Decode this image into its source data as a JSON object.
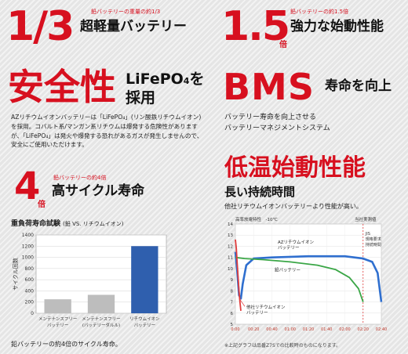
{
  "panel1": {
    "fraction": "1/3",
    "note": "鉛バッテリーの重量の約1/3",
    "title": "超軽量バッテリー"
  },
  "panel2": {
    "number": "1.5",
    "suffix": "倍",
    "note": "鉛バッテリーの約1.5倍",
    "title": "強力な始動性能"
  },
  "panel3": {
    "title": "安全性",
    "title_right_1": "LiFePO",
    "title_right_sub": "4",
    "title_right_2": "を",
    "title_right_3": "採用",
    "body": "AZリチウムイオンバッテリーは「LiFePO₄」(リン酸鉄リチウムイオン)を採用。コバルト系/マンガン系リチウムは爆発する危険性がありますが、「LiFePO₄」は発火や爆発する恐れがあるガスが発生しませんので、安全にご使用いただけます。"
  },
  "panel4": {
    "title": "BMS",
    "title_right": "寿命を向上",
    "body_line1": "バッテリー寿命を向上させる",
    "body_line2": "バッテリーマネジメントシステム"
  },
  "panel5": {
    "number": "4",
    "suffix": "倍",
    "note": "鉛バッテリーの約4倍",
    "title": "高サイクル寿命",
    "chart_heading": "重負荷寿命試験",
    "chart_heading_sub": "(鉛 VS. リチウムイオン)",
    "caption": "鉛バッテリーの約4倍のサイクル寿命。"
  },
  "panel6": {
    "title": "低温始動性能",
    "subtitle": "長い持続時間",
    "body": "他社リチウムイオンバッテリーより性能が高い。",
    "footnote": "※上記グラフは品番Z7Sでの比較時のものになります。"
  },
  "chart_data": [
    {
      "type": "bar",
      "ylabel": "サイクル回数",
      "ylim": [
        0,
        1400
      ],
      "yticks": [
        "0",
        "200",
        "400",
        "600",
        "800",
        "1000",
        "1200",
        "1400"
      ],
      "categories": [
        "メンテナンスフリー バッテリー",
        "メンテナンスフリー (バッテリーダルル)",
        "リチウムイオン バッテリー"
      ],
      "values": [
        250,
        330,
        1200
      ],
      "colors": [
        "#bdbdbd",
        "#bdbdbd",
        "#2f5fae"
      ]
    },
    {
      "type": "line",
      "title": "高率放電特性　-10℃",
      "ylim": [
        5,
        14
      ],
      "yticks": [
        "14",
        "13",
        "12",
        "11",
        "10",
        "9",
        "8",
        "7",
        "6",
        "5"
      ],
      "x": [
        "0:00",
        "00:20",
        "00:40",
        "01:00",
        "01:20",
        "01:40",
        "02:00",
        "02:20",
        "02:40"
      ],
      "annotation_top": "当社実測値",
      "jis_label": "JIS 規格要求 持続時間",
      "series": [
        {
          "name": "AZリチウムイオン バッテリー",
          "color": "#2f6fcf",
          "points": [
            [
              0,
              11.5
            ],
            [
              2,
              9.8
            ],
            [
              4,
              7.6
            ],
            [
              6,
              7.3
            ],
            [
              8,
              8.6
            ],
            [
              12,
              10.3
            ],
            [
              20,
              10.9
            ],
            [
              40,
              11.0
            ],
            [
              80,
              11.1
            ],
            [
              120,
              11.1
            ],
            [
              140,
              10.9
            ],
            [
              150,
              10.6
            ],
            [
              156,
              9.6
            ],
            [
              160,
              7.0
            ]
          ]
        },
        {
          "name": "鉛バッテリー",
          "color": "#3aa646",
          "points": [
            [
              0,
              11.0
            ],
            [
              10,
              10.9
            ],
            [
              30,
              10.8
            ],
            [
              60,
              10.6
            ],
            [
              90,
              10.3
            ],
            [
              110,
              9.9
            ],
            [
              125,
              9.2
            ],
            [
              135,
              8.2
            ],
            [
              140,
              7.0
            ]
          ]
        },
        {
          "name": "他社リチウムイオン バッテリー",
          "color": "#e03c3c",
          "points": [
            [
              0,
              12.6
            ],
            [
              1,
              11.8
            ],
            [
              2,
              10.5
            ],
            [
              3,
              9.2
            ],
            [
              4,
              8.0
            ],
            [
              5,
              7.0
            ],
            [
              6,
              6.2
            ]
          ]
        }
      ]
    }
  ]
}
